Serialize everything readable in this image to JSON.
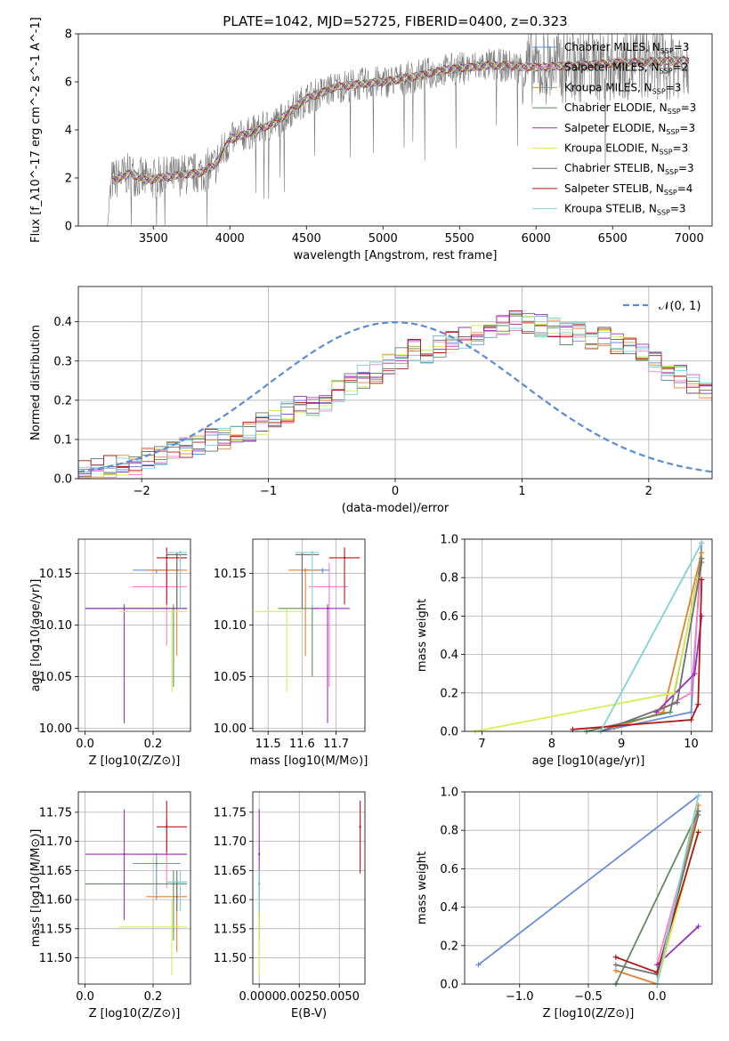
{
  "figure_title": "PLATE=1042, MJD=52725, FIBERID=0400, z=0.323",
  "series_colors": {
    "Chabrier MILES": "#6a8fd8",
    "Salpeter MILES": "#f77fc8",
    "Kroupa MILES": "#e8822e",
    "Chabrier ELODIE": "#5f8c5f",
    "Salpeter ELODIE": "#9b2fc0",
    "Kroupa ELODIE": "#d7ee54",
    "Chabrier STELIB": "#6f6f6f",
    "Salpeter STELIB": "#b01818",
    "Kroupa STELIB": "#7fd3d8"
  },
  "chart_data": [
    {
      "id": "spectrum",
      "type": "line",
      "xlabel": "wavelength [Angstrom, rest frame]",
      "ylabel": "Flux [f_λ10^-17 erg cm^-2 s^-1 A^-1]",
      "xlim": [
        3010,
        7150
      ],
      "ylim": [
        0,
        8
      ],
      "xticks": [
        3500,
        4000,
        4500,
        5000,
        5500,
        6000,
        6500,
        7000
      ],
      "yticks": [
        0,
        2,
        4,
        6,
        8
      ],
      "grid": false,
      "legend_position": "top-right",
      "legend": [
        "Chabrier MILES, N_SSP=3",
        "Salpeter MILES, N_SSP=2",
        "Kroupa MILES, N_SSP=3",
        "Chabrier ELODIE, N_SSP=3",
        "Salpeter ELODIE, N_SSP=3",
        "Kroupa ELODIE, N_SSP=3",
        "Chabrier STELIB, N_SSP=3",
        "Salpeter STELIB, N_SSP=4",
        "Kroupa STELIB, N_SSP=3"
      ],
      "data_range": [
        3200,
        7000
      ],
      "continuum": [
        [
          3200,
          0.0
        ],
        [
          3230,
          1.9
        ],
        [
          3350,
          2.2
        ],
        [
          3450,
          1.9
        ],
        [
          3550,
          2.0
        ],
        [
          3650,
          2.1
        ],
        [
          3800,
          2.2
        ],
        [
          3900,
          2.5
        ],
        [
          4000,
          3.6
        ],
        [
          4100,
          3.8
        ],
        [
          4300,
          4.3
        ],
        [
          4500,
          5.3
        ],
        [
          4700,
          5.8
        ],
        [
          5000,
          6.0
        ],
        [
          5200,
          6.2
        ],
        [
          5400,
          6.5
        ],
        [
          5700,
          6.7
        ],
        [
          6000,
          6.6
        ],
        [
          6300,
          6.7
        ],
        [
          6600,
          6.8
        ],
        [
          7000,
          6.9
        ]
      ]
    },
    {
      "id": "residuals",
      "type": "histogram",
      "xlabel": "(data-model)/error",
      "ylabel": "Normed distribution",
      "xlim": [
        -2.5,
        2.5
      ],
      "ylim": [
        0,
        0.49
      ],
      "xticks": [
        -2,
        -1,
        0,
        1,
        2
      ],
      "yticks": [
        0.0,
        0.1,
        0.2,
        0.3,
        0.4
      ],
      "grid": true,
      "legend_position": "top-right",
      "legend": [
        "N(0,1)"
      ],
      "bin_width": 0.1,
      "bin_start": -2.5,
      "hist_values": [
        0.02,
        0.025,
        0.03,
        0.035,
        0.04,
        0.05,
        0.055,
        0.065,
        0.08,
        0.09,
        0.1,
        0.1,
        0.11,
        0.12,
        0.14,
        0.16,
        0.17,
        0.18,
        0.19,
        0.2,
        0.22,
        0.24,
        0.26,
        0.27,
        0.29,
        0.31,
        0.33,
        0.32,
        0.34,
        0.35,
        0.36,
        0.37,
        0.38,
        0.39,
        0.4,
        0.4,
        0.39,
        0.38,
        0.37,
        0.38,
        0.36,
        0.36,
        0.34,
        0.33,
        0.32,
        0.3,
        0.28,
        0.26,
        0.24,
        0.23,
        0.22,
        0.21,
        0.2,
        0.18,
        0.17,
        0.16,
        0.14,
        0.13,
        0.12,
        0.11,
        0.1,
        0.09,
        0.08,
        0.07,
        0.06,
        0.055,
        0.05,
        0.04,
        0.035,
        0.03
      ]
    },
    {
      "id": "age_vs_Z",
      "type": "scatter",
      "xlabel": "Z [log10(Z/Z⊙)]",
      "ylabel": "age  [log10(age/yr)]",
      "xlim": [
        -0.02,
        0.31
      ],
      "ylim": [
        9.997,
        10.183
      ],
      "xticks": [
        0.0,
        0.2
      ],
      "yticks": [
        10.0,
        10.05,
        10.1,
        10.15
      ],
      "grid": true,
      "points": [
        {
          "series": "Chabrier MILES",
          "x": 0.21,
          "y": 10.153,
          "xerr": [
            0.14,
            0.28
          ],
          "yerr": [
            10.15,
            10.153
          ]
        },
        {
          "series": "Salpeter MILES",
          "x": 0.24,
          "y": 10.137,
          "xerr": [
            0.14,
            0.3
          ],
          "yerr": [
            10.08,
            10.16
          ]
        },
        {
          "series": "Kroupa MILES",
          "x": 0.27,
          "y": 10.153,
          "xerr": [
            0.18,
            0.3
          ],
          "yerr": [
            10.07,
            10.168
          ]
        },
        {
          "series": "Chabrier ELODIE",
          "x": 0.26,
          "y": 10.116,
          "xerr": [
            0.0,
            0.3
          ],
          "yerr": [
            10.04,
            10.12
          ]
        },
        {
          "series": "Salpeter ELODIE",
          "x": 0.115,
          "y": 10.116,
          "xerr": [
            0.0,
            0.3
          ],
          "yerr": [
            10.005,
            10.12
          ]
        },
        {
          "series": "Kroupa ELODIE",
          "x": 0.255,
          "y": 10.113,
          "xerr": [
            0.1,
            0.3
          ],
          "yerr": [
            10.035,
            10.115
          ]
        },
        {
          "series": "Chabrier STELIB",
          "x": 0.27,
          "y": 10.168,
          "xerr": [
            0.24,
            0.3
          ],
          "yerr": [
            10.116,
            10.17
          ]
        },
        {
          "series": "Salpeter STELIB",
          "x": 0.24,
          "y": 10.165,
          "xerr": [
            0.21,
            0.3
          ],
          "yerr": [
            10.12,
            10.175
          ]
        },
        {
          "series": "Kroupa STELIB",
          "x": 0.28,
          "y": 10.17,
          "xerr": [
            0.24,
            0.3
          ],
          "yerr": [
            10.116,
            10.172
          ]
        }
      ]
    },
    {
      "id": "age_vs_mass",
      "type": "scatter",
      "xlabel": "mass [log10(M/M⊙)]",
      "ylabel": "",
      "xlim": [
        11.455,
        11.785
      ],
      "ylim": [
        9.997,
        10.183
      ],
      "xticks": [
        11.5,
        11.6,
        11.7
      ],
      "yticks": [
        10.0,
        10.05,
        10.1,
        10.15
      ],
      "grid": true,
      "points": [
        {
          "series": "Chabrier MILES",
          "x": 11.66,
          "y": 10.153,
          "xerr": [
            11.6,
            11.68
          ],
          "yerr": [
            10.15,
            10.155
          ]
        },
        {
          "series": "Salpeter MILES",
          "x": 11.68,
          "y": 10.137,
          "xerr": [
            11.62,
            11.735
          ],
          "yerr": [
            10.04,
            10.16
          ]
        },
        {
          "series": "Kroupa MILES",
          "x": 11.61,
          "y": 10.153,
          "xerr": [
            11.56,
            11.65
          ],
          "yerr": [
            10.07,
            10.155
          ]
        },
        {
          "series": "Chabrier ELODIE",
          "x": 11.63,
          "y": 10.116,
          "xerr": [
            11.53,
            11.65
          ],
          "yerr": [
            10.05,
            10.12
          ]
        },
        {
          "series": "Salpeter ELODIE",
          "x": 11.675,
          "y": 10.116,
          "xerr": [
            11.63,
            11.74
          ],
          "yerr": [
            10.005,
            10.12
          ]
        },
        {
          "series": "Kroupa ELODIE",
          "x": 11.555,
          "y": 10.113,
          "xerr": [
            11.46,
            11.6
          ],
          "yerr": [
            10.035,
            10.115
          ]
        },
        {
          "series": "Chabrier STELIB",
          "x": 11.6,
          "y": 10.168,
          "xerr": [
            11.58,
            11.65
          ],
          "yerr": [
            10.116,
            10.17
          ]
        },
        {
          "series": "Salpeter STELIB",
          "x": 11.725,
          "y": 10.165,
          "xerr": [
            11.68,
            11.77
          ],
          "yerr": [
            10.12,
            10.175
          ]
        },
        {
          "series": "Kroupa STELIB",
          "x": 11.63,
          "y": 10.17,
          "xerr": [
            11.58,
            11.65
          ],
          "yerr": [
            10.116,
            10.172
          ]
        }
      ]
    },
    {
      "id": "mass_weight_vs_age",
      "type": "line",
      "xlabel": "age  [log10(age/yr)]",
      "ylabel": "mass weight",
      "xlim": [
        6.75,
        10.3
      ],
      "ylim": [
        0,
        1
      ],
      "xticks": [
        7,
        8,
        9,
        10
      ],
      "yticks": [
        0.0,
        0.2,
        0.4,
        0.6,
        0.8,
        1.0
      ],
      "grid": true,
      "series": [
        {
          "series": "Chabrier MILES",
          "x": [
            8.7,
            10.0,
            10.15
          ],
          "y": [
            0.0,
            0.1,
            0.98
          ]
        },
        {
          "series": "Salpeter MILES",
          "x": [
            9.5,
            10.0,
            10.15
          ],
          "y": [
            0.1,
            0.2,
            0.9
          ]
        },
        {
          "series": "Kroupa MILES",
          "x": [
            8.9,
            9.6,
            10.15
          ],
          "y": [
            0.02,
            0.1,
            0.93
          ]
        },
        {
          "series": "Chabrier ELODIE",
          "x": [
            8.5,
            9.7,
            10.15
          ],
          "y": [
            0.0,
            0.1,
            0.9
          ]
        },
        {
          "series": "Salpeter ELODIE",
          "x": [
            9.5,
            10.05,
            10.15
          ],
          "y": [
            0.1,
            0.3,
            0.6
          ]
        },
        {
          "series": "Kroupa ELODIE",
          "x": [
            6.9,
            9.75,
            10.1
          ],
          "y": [
            0.0,
            0.2,
            0.8
          ]
        },
        {
          "series": "Chabrier STELIB",
          "x": [
            8.7,
            9.8,
            10.15
          ],
          "y": [
            0.0,
            0.15,
            0.88
          ]
        },
        {
          "series": "Salpeter STELIB",
          "x": [
            8.3,
            10.0,
            10.1,
            10.15
          ],
          "y": [
            0.01,
            0.06,
            0.14,
            0.79
          ]
        },
        {
          "series": "Kroupa STELIB",
          "x": [
            8.7,
            10.15
          ],
          "y": [
            0.0,
            0.98
          ]
        }
      ]
    },
    {
      "id": "mass_vs_Z",
      "type": "scatter",
      "xlabel": "Z [log10(Z/Z⊙)]",
      "ylabel": "mass [log10(M/M⊙)]",
      "xlim": [
        -0.02,
        0.31
      ],
      "ylim": [
        11.455,
        11.785
      ],
      "xticks": [
        0.0,
        0.2
      ],
      "yticks": [
        11.5,
        11.55,
        11.6,
        11.65,
        11.7,
        11.75
      ],
      "grid": true,
      "points": [
        {
          "series": "Chabrier MILES",
          "x": 0.21,
          "y": 11.662,
          "xerr": [
            0.14,
            0.28
          ],
          "yerr": [
            11.6,
            11.68
          ]
        },
        {
          "series": "Salpeter MILES",
          "x": 0.24,
          "y": 11.678,
          "xerr": [
            0.14,
            0.3
          ],
          "yerr": [
            11.62,
            11.735
          ]
        },
        {
          "series": "Kroupa MILES",
          "x": 0.27,
          "y": 11.605,
          "xerr": [
            0.18,
            0.3
          ],
          "yerr": [
            11.51,
            11.63
          ]
        },
        {
          "series": "Chabrier ELODIE",
          "x": 0.26,
          "y": 11.627,
          "xerr": [
            0.0,
            0.3
          ],
          "yerr": [
            11.53,
            11.65
          ]
        },
        {
          "series": "Salpeter ELODIE",
          "x": 0.115,
          "y": 11.678,
          "xerr": [
            0.0,
            0.3
          ],
          "yerr": [
            11.565,
            11.755
          ]
        },
        {
          "series": "Kroupa ELODIE",
          "x": 0.255,
          "y": 11.553,
          "xerr": [
            0.1,
            0.3
          ],
          "yerr": [
            11.47,
            11.6
          ]
        },
        {
          "series": "Chabrier STELIB",
          "x": 0.27,
          "y": 11.63,
          "xerr": [
            0.24,
            0.3
          ],
          "yerr": [
            11.58,
            11.65
          ]
        },
        {
          "series": "Salpeter STELIB",
          "x": 0.24,
          "y": 11.725,
          "xerr": [
            0.21,
            0.3
          ],
          "yerr": [
            11.68,
            11.77
          ]
        },
        {
          "series": "Kroupa STELIB",
          "x": 0.28,
          "y": 11.63,
          "xerr": [
            0.24,
            0.3
          ],
          "yerr": [
            11.58,
            11.65
          ]
        }
      ]
    },
    {
      "id": "mass_vs_ebv",
      "type": "scatter",
      "xlabel": "E(B-V)",
      "ylabel": "",
      "xlim": [
        -0.0004,
        0.0066
      ],
      "ylim": [
        11.455,
        11.785
      ],
      "xticks": [
        0.0,
        0.0025,
        0.005
      ],
      "xticklabels": [
        "0.0000",
        "0.0025",
        "0.0050"
      ],
      "yticks": [
        11.5,
        11.55,
        11.6,
        11.65,
        11.7,
        11.75
      ],
      "grid": true,
      "points": [
        {
          "series": "Salpeter ELODIE",
          "x": 0.0,
          "y": 11.678,
          "yerr": [
            11.565,
            11.755
          ]
        },
        {
          "series": "Chabrier ELODIE",
          "x": 0.0,
          "y": 11.627,
          "yerr": [
            11.53,
            11.65
          ]
        },
        {
          "series": "Kroupa ELODIE",
          "x": 0.0,
          "y": 11.553,
          "yerr": [
            11.47,
            11.6
          ]
        },
        {
          "series": "Kroupa STELIB",
          "x": 0.0,
          "y": 11.63,
          "yerr": [
            11.58,
            11.65
          ]
        },
        {
          "series": "Salpeter STELIB",
          "x": 0.0063,
          "y": 11.725,
          "yerr": [
            11.645,
            11.77
          ]
        }
      ]
    },
    {
      "id": "mass_weight_vs_Z",
      "type": "line",
      "xlabel": "Z [log10(Z/Z⊙)]",
      "ylabel": "mass weight",
      "xlim": [
        -1.4,
        0.4
      ],
      "ylim": [
        0,
        1
      ],
      "xticks": [
        -1.0,
        -0.5,
        0.0
      ],
      "yticks": [
        0.0,
        0.2,
        0.4,
        0.6,
        0.8,
        1.0
      ],
      "grid": true,
      "series": [
        {
          "series": "Chabrier MILES",
          "x": [
            -1.3,
            0.3
          ],
          "y": [
            0.1,
            0.98
          ]
        },
        {
          "series": "Salpeter MILES",
          "x": [
            0.0,
            0.3
          ],
          "y": [
            0.1,
            0.9
          ]
        },
        {
          "series": "Kroupa MILES",
          "x": [
            -0.3,
            0.0,
            0.3
          ],
          "y": [
            0.07,
            0.0,
            0.93
          ]
        },
        {
          "series": "Chabrier ELODIE",
          "x": [
            -0.3,
            0.3
          ],
          "y": [
            0.0,
            0.9
          ]
        },
        {
          "series": "Salpeter ELODIE",
          "x": [
            0.0,
            0.3
          ],
          "y": [
            0.1,
            0.3
          ]
        },
        {
          "series": "Kroupa ELODIE",
          "x": [
            0.0,
            0.3
          ],
          "y": [
            0.0,
            0.8
          ]
        },
        {
          "series": "Chabrier STELIB",
          "x": [
            -0.3,
            0.0,
            0.3
          ],
          "y": [
            0.1,
            0.05,
            0.88
          ]
        },
        {
          "series": "Salpeter STELIB",
          "x": [
            -0.3,
            0.0,
            0.3
          ],
          "y": [
            0.14,
            0.06,
            0.79
          ]
        },
        {
          "series": "Kroupa STELIB",
          "x": [
            0.0,
            0.3
          ],
          "y": [
            0.0,
            0.98
          ]
        }
      ]
    }
  ]
}
